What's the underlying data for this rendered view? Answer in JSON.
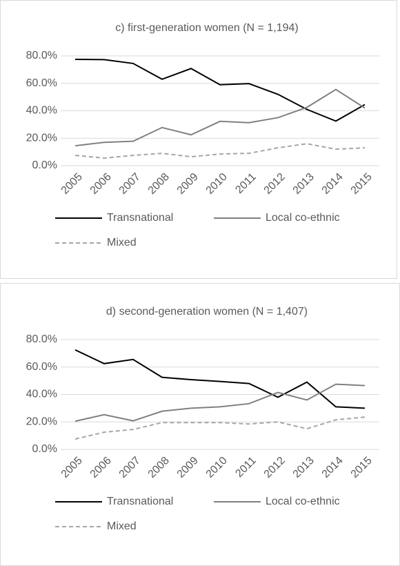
{
  "chart_data": [
    {
      "type": "line",
      "title": "c) first-generation women (N = 1,194)",
      "categories": [
        "2005",
        "2006",
        "2007",
        "2008",
        "2009",
        "2010",
        "2011",
        "2012",
        "2013",
        "2014",
        "2015"
      ],
      "series": [
        {
          "name": "Transnational",
          "color": "#000000",
          "dash": false,
          "values": [
            77.5,
            77.3,
            74.5,
            63,
            70.8,
            59,
            59.8,
            52,
            41,
            32.5,
            44.5
          ]
        },
        {
          "name": "Local co-ethnic",
          "color": "#808080",
          "dash": false,
          "values": [
            14.5,
            17,
            17.8,
            27.8,
            22.5,
            32.3,
            31.3,
            35,
            42.5,
            55.5,
            42
          ]
        },
        {
          "name": "Mixed",
          "color": "#a6a6a6",
          "dash": true,
          "values": [
            7.5,
            5.5,
            7.5,
            9,
            6.5,
            8.5,
            9,
            13,
            16,
            12,
            13
          ]
        }
      ],
      "ylim": [
        0,
        80
      ],
      "yticks": [
        {
          "value": 0,
          "label": "0.0%"
        },
        {
          "value": 20,
          "label": "20.0%"
        },
        {
          "value": 40,
          "label": "40.0%"
        },
        {
          "value": 60,
          "label": "60.0%"
        },
        {
          "value": 80,
          "label": "80.0%"
        }
      ],
      "grid": true
    },
    {
      "type": "line",
      "title": "d) second-generation women (N = 1,407)",
      "categories": [
        "2005",
        "2006",
        "2007",
        "2008",
        "2009",
        "2010",
        "2011",
        "2012",
        "2013",
        "2014",
        "2015"
      ],
      "series": [
        {
          "name": "Transnational",
          "color": "#000000",
          "dash": false,
          "values": [
            72.5,
            62.5,
            65.5,
            52.5,
            50.8,
            49.5,
            48,
            38,
            49,
            31,
            30
          ]
        },
        {
          "name": "Local co-ethnic",
          "color": "#808080",
          "dash": false,
          "values": [
            20.5,
            25.3,
            20.8,
            27.8,
            30,
            31,
            33.3,
            41.5,
            36,
            47.5,
            46.5
          ]
        },
        {
          "name": "Mixed",
          "color": "#a6a6a6",
          "dash": true,
          "values": [
            7.5,
            12.5,
            14.5,
            19.5,
            19.5,
            19.5,
            18.5,
            20,
            15,
            21.5,
            23.5
          ]
        }
      ],
      "ylim": [
        0,
        80
      ],
      "yticks": [
        {
          "value": 0,
          "label": "0.0%"
        },
        {
          "value": 20,
          "label": "20.0%"
        },
        {
          "value": 40,
          "label": "40.0%"
        },
        {
          "value": 60,
          "label": "60.0%"
        },
        {
          "value": 80,
          "label": "80.0%"
        }
      ],
      "grid": true
    }
  ]
}
